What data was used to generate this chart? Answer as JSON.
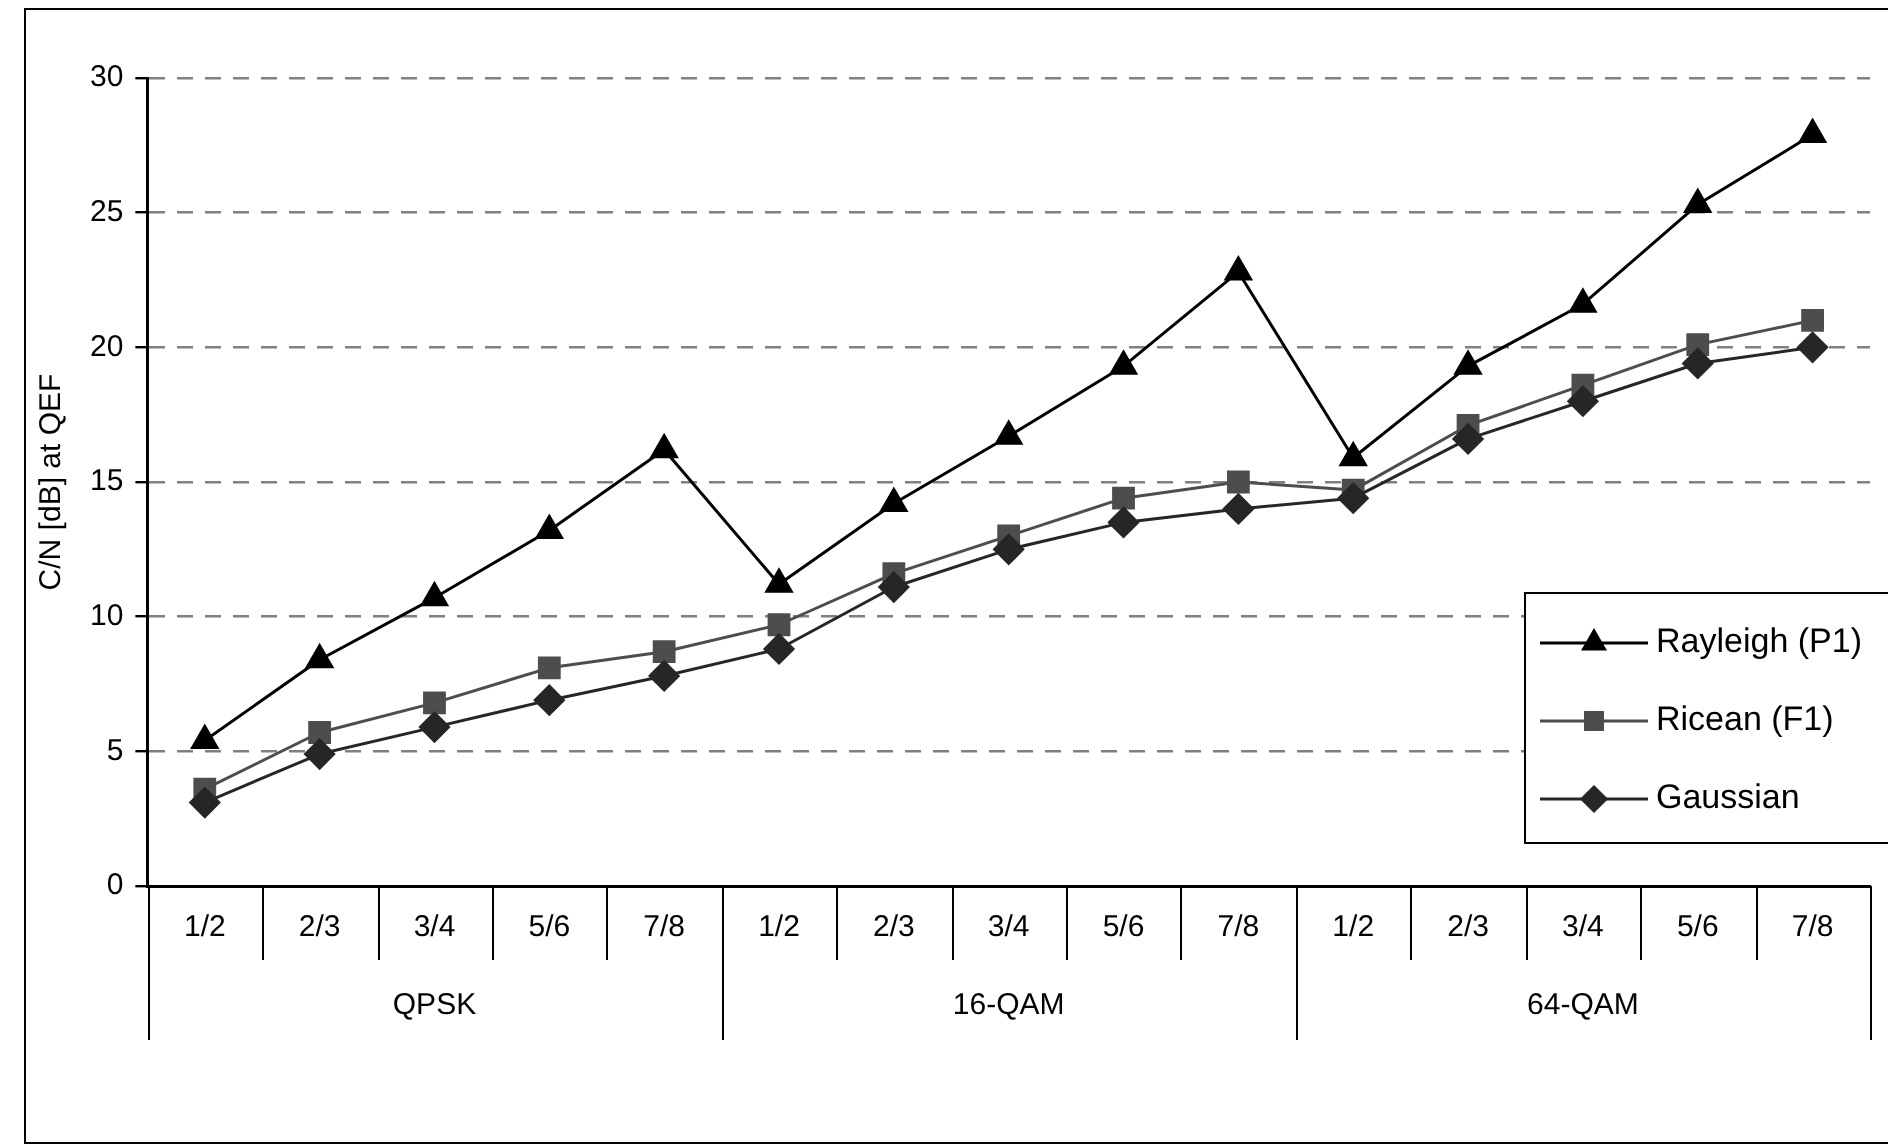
{
  "chart_data": {
    "type": "line",
    "ylabel": "C/N [dB] at QEF",
    "categories": [
      "1/2",
      "2/3",
      "3/4",
      "5/6",
      "7/8",
      "1/2",
      "2/3",
      "3/4",
      "5/6",
      "7/8",
      "1/2",
      "2/3",
      "3/4",
      "5/6",
      "7/8"
    ],
    "series": [
      {
        "name": "Rayleigh (P1)",
        "color": "#000000",
        "marker": "triangle",
        "values": [
          5.4,
          8.4,
          10.7,
          13.2,
          16.2,
          11.2,
          14.2,
          16.7,
          19.3,
          22.8,
          15.9,
          19.3,
          21.6,
          25.3,
          27.9
        ]
      },
      {
        "name": "Ricean (F1)",
        "color": "#4d4d4d",
        "marker": "square",
        "values": [
          3.6,
          5.7,
          6.8,
          8.1,
          8.7,
          9.7,
          11.6,
          13.0,
          14.4,
          15.0,
          14.7,
          17.1,
          18.6,
          20.1,
          21.0
        ]
      },
      {
        "name": "Gaussian",
        "color": "#262626",
        "marker": "diamond",
        "values": [
          3.1,
          4.9,
          5.9,
          6.9,
          7.8,
          8.8,
          11.1,
          12.5,
          13.5,
          14.0,
          14.4,
          16.6,
          18.0,
          19.4,
          20.0
        ]
      }
    ],
    "annotations": [
      "QPSK",
      "16-QAM",
      "64-QAM"
    ],
    "ylim": [
      0,
      30
    ],
    "yticks": [
      0,
      5,
      10,
      15,
      20,
      25,
      30
    ],
    "grid": "y",
    "line_style": "solid",
    "legend": "bottom right"
  }
}
